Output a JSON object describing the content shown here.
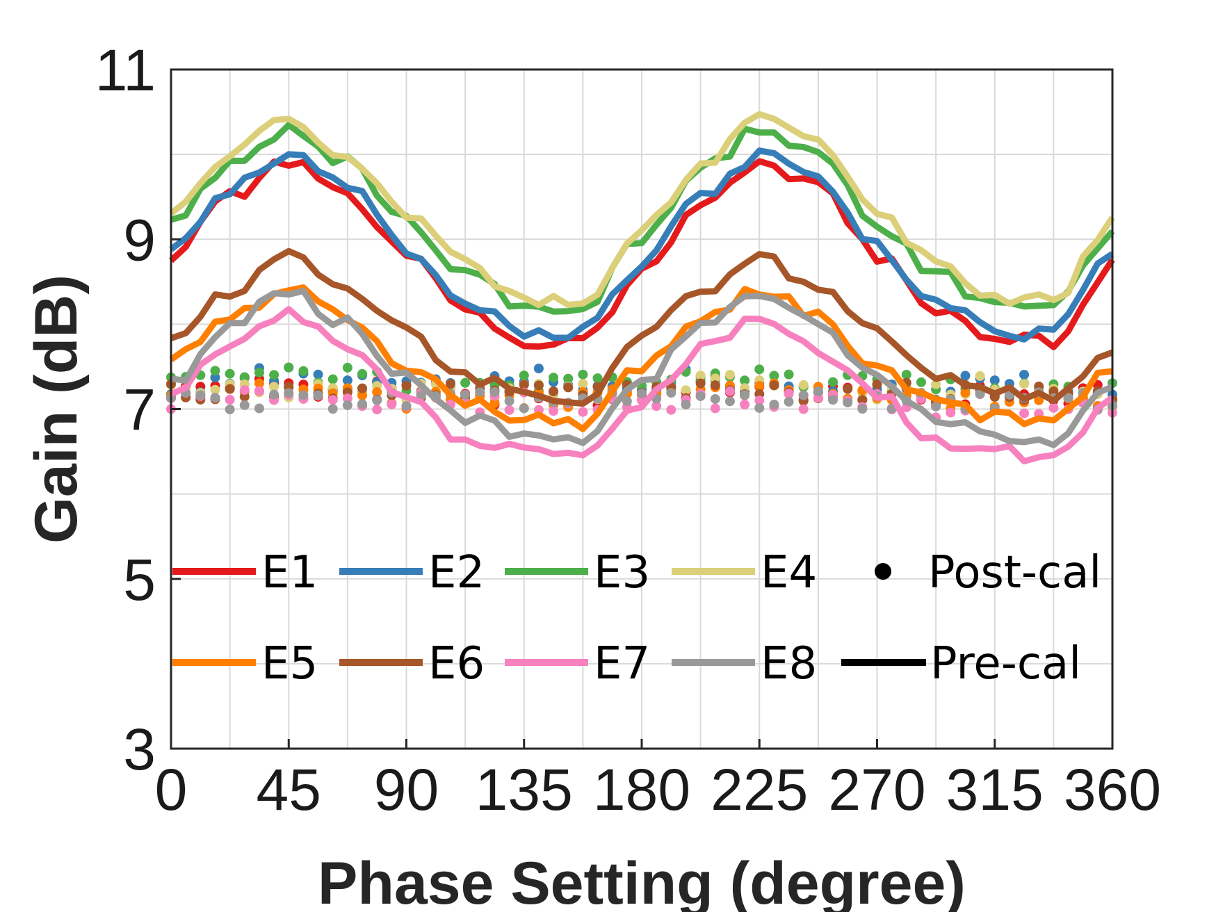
{
  "chart_data": {
    "type": "line",
    "title": "",
    "xlabel": "Phase Setting (degree)",
    "ylabel": "Gain (dB)",
    "xlim": [
      0,
      360
    ],
    "ylim": [
      3,
      11
    ],
    "xticks": [
      0,
      45,
      90,
      135,
      180,
      225,
      270,
      315,
      360
    ],
    "yticks": [
      3,
      5,
      7,
      9,
      11
    ],
    "grid": true,
    "legend_position": "lower-left inside plot, 2 rows",
    "markers": {
      "post_cal": "Post-cal",
      "pre_cal": "Pre-cal"
    },
    "x": [
      0,
      22.5,
      45,
      67.5,
      90,
      112.5,
      135,
      157.5,
      180,
      202.5,
      225,
      247.5,
      270,
      292.5,
      315,
      337.5,
      360
    ],
    "series": [
      {
        "name": "E1",
        "color": "#e41a1c",
        "pre_cal": [
          8.8,
          9.5,
          9.9,
          9.5,
          8.8,
          8.2,
          7.8,
          7.8,
          8.6,
          9.4,
          9.9,
          9.6,
          8.8,
          8.2,
          7.8,
          7.8,
          8.7
        ],
        "post_cal": [
          7.2,
          7.3,
          7.3,
          7.2,
          7.3,
          7.1,
          7.2,
          7.1,
          7.2,
          7.3,
          7.2,
          7.2,
          7.2,
          7.1,
          7.2,
          7.1,
          7.2
        ]
      },
      {
        "name": "E2",
        "color": "#377eb8",
        "pre_cal": [
          8.9,
          9.6,
          10.0,
          9.6,
          8.9,
          8.3,
          7.9,
          7.9,
          8.7,
          9.5,
          10.0,
          9.7,
          8.9,
          8.3,
          7.9,
          7.9,
          8.8
        ],
        "post_cal": [
          7.1,
          7.4,
          7.4,
          7.3,
          7.3,
          7.2,
          7.4,
          7.2,
          7.3,
          7.4,
          7.3,
          7.3,
          7.3,
          7.2,
          7.4,
          7.2,
          7.2
        ]
      },
      {
        "name": "E3",
        "color": "#4daf4a",
        "pre_cal": [
          9.2,
          9.9,
          10.3,
          9.9,
          9.2,
          8.6,
          8.2,
          8.2,
          9.0,
          9.8,
          10.3,
          10.0,
          9.2,
          8.6,
          8.2,
          8.2,
          9.1
        ],
        "post_cal": [
          7.3,
          7.4,
          7.4,
          7.4,
          7.3,
          7.3,
          7.3,
          7.3,
          7.3,
          7.4,
          7.4,
          7.3,
          7.3,
          7.3,
          7.3,
          7.3,
          7.2
        ]
      },
      {
        "name": "E4",
        "color": "#dccf7a",
        "pre_cal": [
          9.3,
          10.0,
          10.4,
          10.0,
          9.3,
          8.7,
          8.3,
          8.3,
          9.1,
          9.9,
          10.4,
          10.1,
          9.3,
          8.7,
          8.3,
          8.3,
          9.2
        ],
        "post_cal": [
          7.2,
          7.3,
          7.2,
          7.2,
          7.2,
          7.2,
          7.2,
          7.2,
          7.2,
          7.3,
          7.3,
          7.2,
          7.2,
          7.2,
          7.3,
          7.2,
          7.1
        ]
      },
      {
        "name": "E5",
        "color": "#ff7f00",
        "pre_cal": [
          7.6,
          8.1,
          8.4,
          8.1,
          7.5,
          7.1,
          6.9,
          6.8,
          7.5,
          8.1,
          8.4,
          8.1,
          7.5,
          7.1,
          6.9,
          6.9,
          7.5
        ],
        "post_cal": [
          7.2,
          7.2,
          7.2,
          7.2,
          7.1,
          7.1,
          7.1,
          7.1,
          7.2,
          7.2,
          7.2,
          7.2,
          7.1,
          7.1,
          7.1,
          7.1,
          7.1
        ]
      },
      {
        "name": "E6",
        "color": "#a65628",
        "pre_cal": [
          7.8,
          8.4,
          8.8,
          8.4,
          7.9,
          7.4,
          7.2,
          7.1,
          7.8,
          8.4,
          8.8,
          8.4,
          7.9,
          7.4,
          7.2,
          7.1,
          7.7
        ],
        "post_cal": [
          7.2,
          7.2,
          7.2,
          7.2,
          7.2,
          7.2,
          7.2,
          7.2,
          7.2,
          7.2,
          7.2,
          7.2,
          7.2,
          7.2,
          7.2,
          7.2,
          7.1
        ]
      },
      {
        "name": "E7",
        "color": "#f781bf",
        "pre_cal": [
          7.2,
          7.7,
          8.1,
          7.7,
          7.2,
          6.6,
          6.5,
          6.4,
          7.1,
          7.7,
          8.1,
          7.7,
          7.2,
          6.6,
          6.5,
          6.4,
          7.1
        ],
        "post_cal": [
          7.1,
          7.1,
          7.2,
          7.1,
          7.1,
          7.0,
          7.1,
          7.0,
          7.1,
          7.1,
          7.1,
          7.1,
          7.1,
          7.0,
          7.1,
          7.0,
          7.0
        ]
      },
      {
        "name": "E8",
        "color": "#999999",
        "pre_cal": [
          7.3,
          8.0,
          8.4,
          8.0,
          7.4,
          6.9,
          6.7,
          6.6,
          7.3,
          8.0,
          8.4,
          8.0,
          7.4,
          6.9,
          6.7,
          6.6,
          7.3
        ],
        "post_cal": [
          7.1,
          7.1,
          7.1,
          7.1,
          7.1,
          7.1,
          7.1,
          7.1,
          7.1,
          7.1,
          7.1,
          7.1,
          7.1,
          7.1,
          7.1,
          7.1,
          7.1
        ]
      }
    ]
  }
}
